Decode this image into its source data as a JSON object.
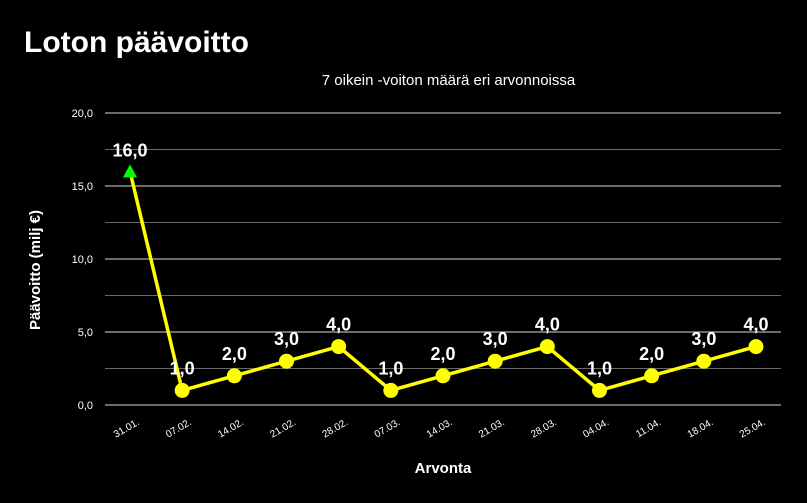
{
  "title": "Loton päävoitto",
  "chart_data": {
    "type": "line",
    "subtitle": "7 oikein  -voiton määrä eri arvonnoissa",
    "xlabel": "Arvonta",
    "ylabel": "Päävoitto (milj €)",
    "categories": [
      "31.01.",
      "07.02.",
      "14.02.",
      "21.02.",
      "28.02.",
      "07.03.",
      "14.03.",
      "21.03.",
      "28.03.",
      "04.04.",
      "11.04.",
      "18.04.",
      "25.04."
    ],
    "values": [
      16.0,
      1.0,
      2.0,
      3.0,
      4.0,
      1.0,
      2.0,
      3.0,
      4.0,
      1.0,
      2.0,
      3.0,
      4.0
    ],
    "value_labels": [
      "16,0",
      "1,0",
      "2,0",
      "3,0",
      "4,0",
      "1,0",
      "2,0",
      "3,0",
      "4,0",
      "1,0",
      "2,0",
      "3,0",
      "4,0"
    ],
    "yticks": [
      0,
      5,
      10,
      15,
      20
    ],
    "ytick_labels": [
      "0,0",
      "5,0",
      "10,0",
      "15,0",
      "20,0"
    ],
    "ylim": [
      0,
      20
    ],
    "grid": true,
    "line_color": "#ffff00",
    "first_marker_color": "#00ff00"
  }
}
